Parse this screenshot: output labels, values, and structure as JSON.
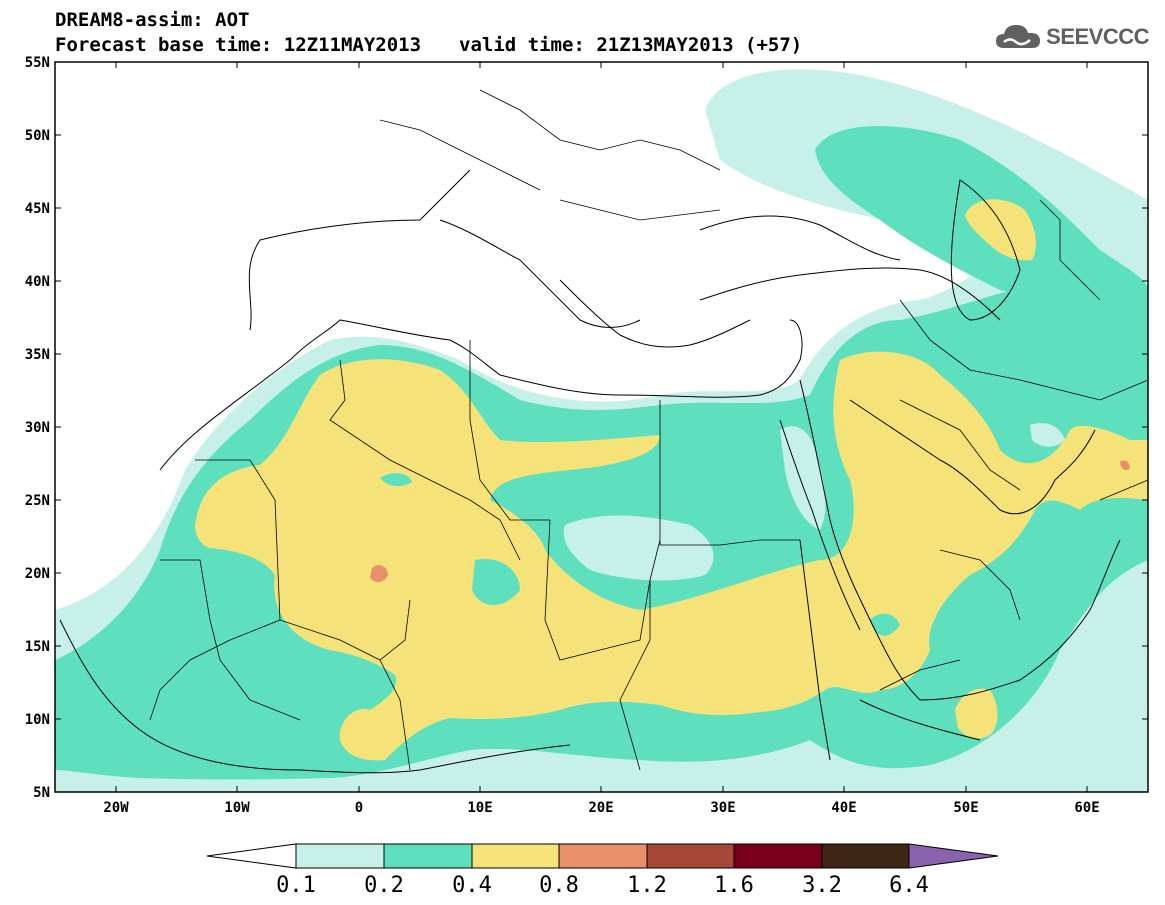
{
  "header": {
    "title": "DREAM8-assim: AOT",
    "base_time": "Forecast base time: 12Z11MAY2013",
    "valid_time": "valid time: 21Z13MAY2013 (+57)"
  },
  "logo": {
    "text": "SEEVCCC",
    "icon": "cloud-icon"
  },
  "axes": {
    "lat_labels": [
      "55N",
      "50N",
      "45N",
      "40N",
      "35N",
      "30N",
      "25N",
      "20N",
      "15N",
      "10N",
      "5N"
    ],
    "lon_labels": [
      "20W",
      "10W",
      "0",
      "10E",
      "20E",
      "30E",
      "40E",
      "50E",
      "60E"
    ]
  },
  "colorbar": {
    "labels": [
      "0.1",
      "0.2",
      "0.4",
      "0.8",
      "1.2",
      "1.6",
      "3.2",
      "6.4"
    ],
    "colors": [
      "#ffffff",
      "#c7f0e9",
      "#5ee0bf",
      "#f5e37a",
      "#e8906a",
      "#a84838",
      "#78001e",
      "#3d2612",
      "#8a62b0"
    ]
  },
  "legend_colors": {
    "aot_0_1": "#c7f0e9",
    "aot_0_2": "#5ee0bf",
    "aot_0_4": "#f5e37a",
    "aot_0_8": "#e8906a"
  }
}
